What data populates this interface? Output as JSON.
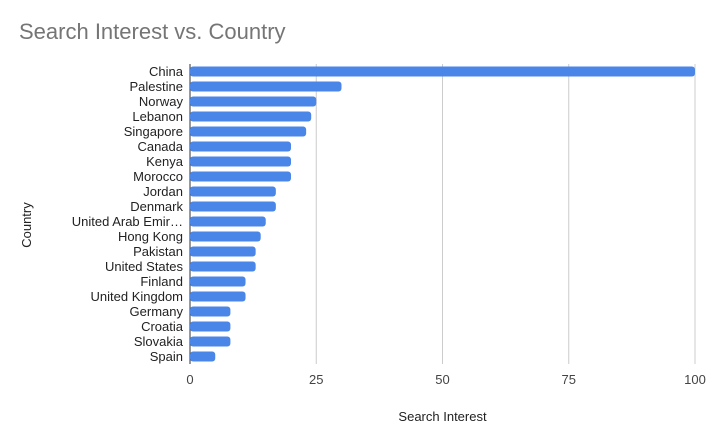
{
  "chart_data": {
    "type": "bar",
    "orientation": "horizontal",
    "title": "Search Interest vs. Country",
    "xlabel": "Search Interest",
    "ylabel": "Country",
    "categories": [
      "China",
      "Palestine",
      "Norway",
      "Lebanon",
      "Singapore",
      "Canada",
      "Kenya",
      "Morocco",
      "Jordan",
      "Denmark",
      "United Arab Emir…",
      "Hong Kong",
      "Pakistan",
      "United States",
      "Finland",
      "United Kingdom",
      "Germany",
      "Croatia",
      "Slovakia",
      "Spain"
    ],
    "values": [
      100,
      30,
      25,
      24,
      23,
      20,
      20,
      20,
      17,
      17,
      15,
      14,
      13,
      13,
      11,
      11,
      8,
      8,
      8,
      5
    ],
    "xlim": [
      0,
      100
    ],
    "xticks": [
      0,
      25,
      50,
      75,
      100
    ],
    "grid": true,
    "bar_color": "#4a86e8",
    "grid_color": "#cccccc"
  }
}
